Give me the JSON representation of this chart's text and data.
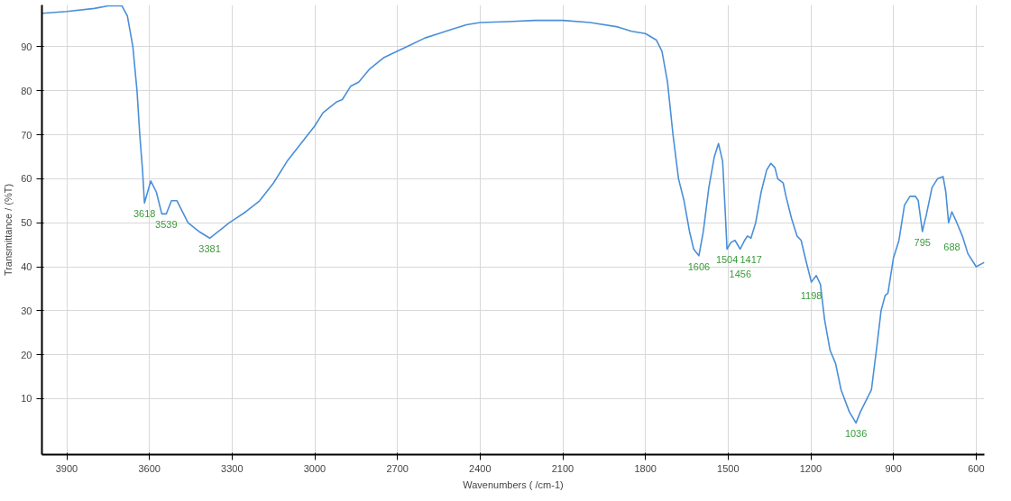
{
  "chart_data": {
    "type": "line",
    "xlabel": "Wavenumbers ( /cm-1)",
    "ylabel": "Transmittance / (%T)",
    "x": [
      3990,
      3900,
      3800,
      3750,
      3700,
      3680,
      3660,
      3645,
      3635,
      3625,
      3618,
      3595,
      3575,
      3555,
      3539,
      3520,
      3500,
      3460,
      3420,
      3381,
      3350,
      3310,
      3250,
      3200,
      3150,
      3100,
      3050,
      3000,
      2970,
      2920,
      2900,
      2870,
      2840,
      2800,
      2750,
      2700,
      2650,
      2600,
      2550,
      2500,
      2450,
      2400,
      2300,
      2200,
      2100,
      2000,
      1900,
      1850,
      1800,
      1760,
      1740,
      1720,
      1700,
      1680,
      1660,
      1640,
      1625,
      1606,
      1590,
      1570,
      1550,
      1535,
      1520,
      1510,
      1504,
      1490,
      1475,
      1456,
      1440,
      1430,
      1417,
      1400,
      1380,
      1360,
      1345,
      1330,
      1320,
      1300,
      1290,
      1270,
      1250,
      1235,
      1220,
      1198,
      1180,
      1165,
      1150,
      1130,
      1110,
      1090,
      1060,
      1036,
      1020,
      1000,
      980,
      960,
      945,
      930,
      920,
      900,
      880,
      860,
      840,
      820,
      810,
      795,
      780,
      760,
      740,
      720,
      710,
      700,
      688,
      670,
      650,
      630,
      600,
      570
    ],
    "series": [
      {
        "color": "#4a8fd8",
        "values": [
          97.6,
          98,
          98.7,
          99.3,
          99.3,
          97,
          90,
          80,
          70,
          62,
          54.5,
          59.5,
          57,
          52,
          52,
          55,
          55,
          50,
          48,
          46.5,
          48,
          50,
          52.5,
          55,
          59,
          64,
          68,
          72,
          75,
          77.5,
          78,
          81,
          82,
          85,
          87.5,
          89,
          90.5,
          92,
          93,
          94,
          95,
          95.5,
          95.7,
          96,
          96,
          95.5,
          94.5,
          93.5,
          93,
          91.5,
          89,
          82,
          70,
          60,
          55,
          48,
          44,
          42.5,
          48,
          58,
          65,
          68,
          64,
          52,
          44,
          45.5,
          46,
          44,
          46,
          47,
          46.5,
          50,
          57,
          62,
          63.5,
          62.5,
          60,
          59,
          56,
          51,
          47,
          46,
          42,
          36.5,
          38,
          36,
          28,
          21,
          18,
          12,
          7,
          4.5,
          7,
          9.5,
          12,
          22,
          30,
          33.5,
          34,
          42,
          46,
          54,
          56,
          56,
          55,
          48,
          52,
          58,
          60,
          60.5,
          57,
          50,
          52.5,
          50,
          47,
          43,
          40,
          41
        ]
      }
    ],
    "xlim": [
      3990,
      570
    ],
    "ylim": [
      -2.7,
      99.5
    ],
    "xticks": [
      3900,
      3600,
      3300,
      3000,
      2700,
      2400,
      2100,
      1800,
      1500,
      1200,
      900,
      600
    ],
    "yticks": [
      10,
      20,
      30,
      40,
      50,
      60,
      70,
      80,
      90
    ],
    "grid": true,
    "annotations": [
      {
        "text": "3618",
        "x": 3618,
        "y": 54.5
      },
      {
        "text": "3539",
        "x": 3539,
        "y": 52
      },
      {
        "text": "3381",
        "x": 3381,
        "y": 46.5
      },
      {
        "text": "1606",
        "x": 1606,
        "y": 42.5
      },
      {
        "text": "1504",
        "x": 1504,
        "y": 44
      },
      {
        "text": "1456",
        "x": 1456,
        "y": 44
      },
      {
        "text": "1417",
        "x": 1417,
        "y": 46.5
      },
      {
        "text": "1198",
        "x": 1198,
        "y": 36.5
      },
      {
        "text": "1036",
        "x": 1036,
        "y": 4.5
      },
      {
        "text": "795",
        "x": 795,
        "y": 48
      },
      {
        "text": "688",
        "x": 688,
        "y": 52.5
      }
    ]
  }
}
